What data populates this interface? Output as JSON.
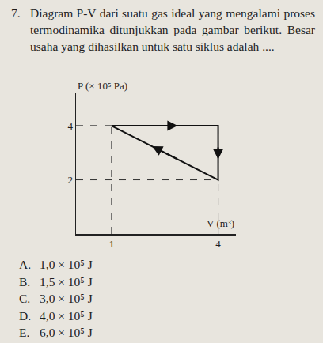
{
  "question": {
    "number": "7.",
    "text": "Diagram P-V dari suatu gas ideal yang mengalami proses termodinamika ditunjukkan pada gambar berikut. Besar usaha yang dihasilkan untuk satu siklus adalah ...."
  },
  "chart_data": {
    "type": "line",
    "xlabel": "V (m³)",
    "ylabel": "P (× 10⁵ Pa)",
    "x": [
      1,
      4,
      4,
      1
    ],
    "values": [
      4,
      4,
      2,
      4
    ],
    "color": "#111111",
    "xlim": [
      0,
      4.5
    ],
    "ylim": [
      0,
      5.2
    ],
    "xticks": [
      1,
      4
    ],
    "yticks": [
      2,
      4
    ],
    "grid": false
  },
  "options": [
    {
      "letter": "A.",
      "text": "1,0 × 10⁵ J"
    },
    {
      "letter": "B.",
      "text": "1,5 × 10⁵ J"
    },
    {
      "letter": "C.",
      "text": "3,0 × 10⁵ J"
    },
    {
      "letter": "D.",
      "text": "4,0 × 10⁵ J"
    },
    {
      "letter": "E.",
      "text": "6,0 × 10⁵ J"
    }
  ]
}
